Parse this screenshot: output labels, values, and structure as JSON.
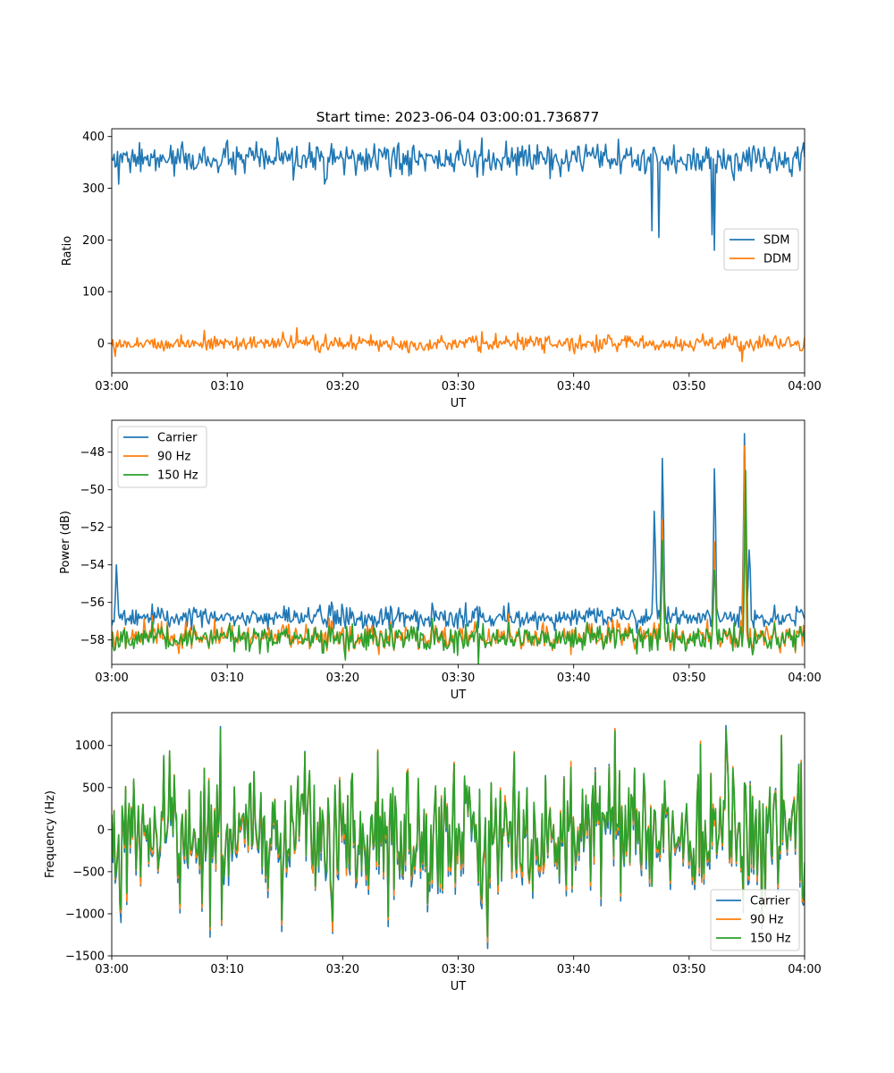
{
  "figure": {
    "title": "Start time: 2023-06-04 03:00:01.736877"
  },
  "colors": {
    "blue": "#1f77b4",
    "orange": "#ff7f0e",
    "green": "#2ca02c"
  },
  "chart_data": [
    {
      "type": "line",
      "title": "Start time: 2023-06-04 03:00:01.736877",
      "xlabel": "UT",
      "ylabel": "Ratio",
      "x_range": [
        "03:00",
        "04:00"
      ],
      "xlim_minutes": [
        0,
        60
      ],
      "x_ticks": [
        "03:00",
        "03:10",
        "03:20",
        "03:30",
        "03:40",
        "03:50",
        "04:00"
      ],
      "ylim": [
        -57,
        415
      ],
      "y_ticks": [
        0,
        100,
        200,
        300,
        400
      ],
      "grid": false,
      "legend_position": "center-right",
      "sample_count": 600,
      "series": [
        {
          "name": "SDM",
          "color": "#1f77b4",
          "baseline": 355,
          "noise_amplitude": 18,
          "values_min": 180,
          "values_max": 393,
          "dips": [
            {
              "t": 0.6,
              "value": 308
            },
            {
              "t": 46.8,
              "value": 218
            },
            {
              "t": 47.4,
              "value": 205
            },
            {
              "t": 52.0,
              "value": 210
            },
            {
              "t": 52.2,
              "value": 180
            }
          ]
        },
        {
          "name": "DDM",
          "color": "#ff7f0e",
          "baseline": 0,
          "noise_amplitude": 9,
          "values_min": -35,
          "values_max": 30,
          "spikes": [
            {
              "t": 16.0,
              "value": 30
            },
            {
              "t": 8.0,
              "value": 25
            },
            {
              "t": 54.6,
              "value": -35
            }
          ]
        }
      ]
    },
    {
      "type": "line",
      "xlabel": "UT",
      "ylabel": "Power (dB)",
      "x_range": [
        "03:00",
        "04:00"
      ],
      "xlim_minutes": [
        0,
        60
      ],
      "x_ticks": [
        "03:00",
        "03:10",
        "03:20",
        "03:30",
        "03:40",
        "03:50",
        "04:00"
      ],
      "ylim": [
        -59.3,
        -46.3
      ],
      "y_ticks": [
        -58,
        -56,
        -54,
        -52,
        -50,
        -48
      ],
      "grid": false,
      "legend_position": "upper-left",
      "sample_count": 600,
      "series": [
        {
          "name": "Carrier",
          "color": "#1f77b4",
          "baseline": -56.8,
          "noise_amplitude": 0.3,
          "peaks": [
            {
              "t": 0.4,
              "value": -54.3
            },
            {
              "t": 47.0,
              "value": -51.4
            },
            {
              "t": 47.7,
              "value": -48.3
            },
            {
              "t": 52.2,
              "value": -48.7
            },
            {
              "t": 54.8,
              "value": -46.8
            },
            {
              "t": 55.2,
              "value": -52.8
            }
          ]
        },
        {
          "name": "90 Hz",
          "color": "#ff7f0e",
          "baseline": -57.8,
          "noise_amplitude": 0.35,
          "peaks": [
            {
              "t": 47.7,
              "value": -51.5
            },
            {
              "t": 52.2,
              "value": -53.0
            },
            {
              "t": 54.8,
              "value": -48.2
            }
          ]
        },
        {
          "name": "150 Hz",
          "color": "#2ca02c",
          "baseline": -57.9,
          "noise_amplitude": 0.35,
          "peaks": [
            {
              "t": 47.7,
              "value": -52.5
            },
            {
              "t": 52.2,
              "value": -54.0
            },
            {
              "t": 54.9,
              "value": -49.2
            }
          ]
        }
      ]
    },
    {
      "type": "line",
      "xlabel": "UT",
      "ylabel": "Frequency (Hz)",
      "x_range": [
        "03:00",
        "04:00"
      ],
      "xlim_minutes": [
        0,
        60
      ],
      "x_ticks": [
        "03:00",
        "03:10",
        "03:20",
        "03:30",
        "03:40",
        "03:50",
        "04:00"
      ],
      "ylim": [
        -1500,
        1390
      ],
      "y_ticks": [
        -1500,
        -1000,
        -500,
        0,
        500,
        1000
      ],
      "grid": false,
      "legend_position": "lower-right",
      "sample_count": 600,
      "series": [
        {
          "name": "Carrier",
          "color": "#1f77b4",
          "offset": -60,
          "noise_amplitude": 380
        },
        {
          "name": "90 Hz",
          "color": "#ff7f0e",
          "offset": -25,
          "noise_amplitude": 380
        },
        {
          "name": "150 Hz",
          "color": "#2ca02c",
          "offset": 0,
          "noise_amplitude": 380,
          "extremes": [
            {
              "t": 8.5,
              "value": -1200
            },
            {
              "t": 9.4,
              "value": 1260
            },
            {
              "t": 32.6,
              "value": -1350
            },
            {
              "t": 43.6,
              "value": 1250
            },
            {
              "t": 58.0,
              "value": 1170
            }
          ]
        }
      ]
    }
  ]
}
